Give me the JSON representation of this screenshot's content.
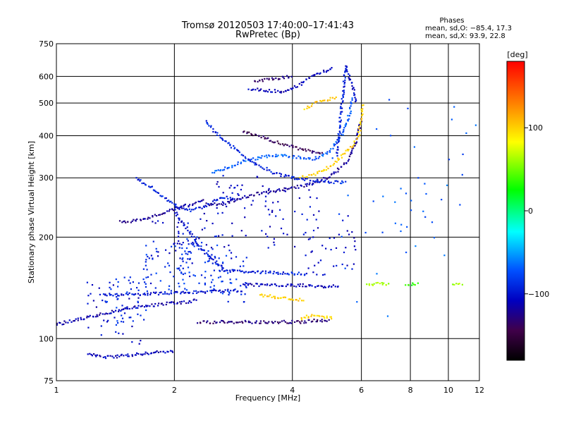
{
  "chart_data": {
    "type": "scatter",
    "title": "Tromsø 20120503 17:40:00–17:41:43",
    "subtitle": "RwPretec (Bp)",
    "xlabel": "Frequency [MHz]",
    "ylabel": "Stationary phase Virtual Height [km]",
    "xscale": "log",
    "yscale": "log",
    "xlim": [
      1,
      12
    ],
    "ylim": [
      75,
      750
    ],
    "xticks": [
      1,
      2,
      4,
      6,
      8,
      10,
      12
    ],
    "xtick_labels": [
      "1",
      "2",
      "4",
      "6",
      "8",
      "10",
      "12"
    ],
    "yticks": [
      75,
      100,
      200,
      300,
      400,
      500,
      600,
      750
    ],
    "ytick_labels": [
      "75",
      "100",
      "200",
      "300",
      "400",
      "500",
      "600",
      "750"
    ],
    "grid": true,
    "phase_stats": {
      "heading": "Phases",
      "line_o": "mean, sd,O: −85.4, 17.3",
      "line_x": "mean, sd,X:  93.9, 22.8"
    },
    "colorbar": {
      "label": "[deg]",
      "range": [
        -180,
        180
      ],
      "ticks": [
        100,
        0,
        -100
      ],
      "tick_labels": [
        "100",
        "0",
        "−100"
      ],
      "colors": [
        "#ff0000",
        "#ff8000",
        "#ffff00",
        "#00ff00",
        "#00ffff",
        "#0050ff",
        "#0000c0",
        "#40004a",
        "#000000"
      ]
    },
    "traces": [
      {
        "kind": "line",
        "x": [
          1.0,
          1.1,
          1.3,
          1.5,
          1.7,
          1.9,
          2.1,
          2.3
        ],
        "y": [
          110,
          113,
          118,
          123,
          125,
          127,
          128,
          130
        ],
        "phase": -115
      },
      {
        "kind": "line",
        "x": [
          2.3,
          2.6,
          3.0,
          3.4,
          3.8,
          4.2,
          4.5,
          5.0
        ],
        "y": [
          112,
          112,
          112,
          112,
          112,
          112,
          113,
          113
        ],
        "phase": -130
      },
      {
        "kind": "line",
        "x": [
          4.2,
          4.5,
          4.8,
          5.1
        ],
        "y": [
          115,
          117,
          116,
          115
        ],
        "phase": 100
      },
      {
        "kind": "line",
        "x": [
          1.2,
          1.35,
          1.5,
          1.65,
          1.8,
          2.0
        ],
        "y": [
          90,
          88,
          89,
          90,
          91,
          92
        ],
        "phase": -110
      },
      {
        "kind": "line",
        "x": [
          1.3,
          1.5,
          1.8,
          2.1,
          2.5,
          3.0
        ],
        "y": [
          135,
          135,
          136,
          137,
          138,
          139
        ],
        "phase": -100
      },
      {
        "kind": "line",
        "x": [
          3.0,
          3.4,
          3.8,
          4.2,
          4.8,
          5.3
        ],
        "y": [
          145,
          144,
          144,
          144,
          143,
          143
        ],
        "phase": -110
      },
      {
        "kind": "line",
        "x": [
          3.3,
          3.6,
          3.9,
          4.3
        ],
        "y": [
          135,
          133,
          132,
          130
        ],
        "phase": 100
      },
      {
        "kind": "line",
        "x": [
          2.6,
          3.0,
          3.5,
          4.0,
          4.4
        ],
        "y": [
          160,
          158,
          157,
          156,
          155
        ],
        "phase": -95
      },
      {
        "kind": "line",
        "x": [
          1.45,
          1.6,
          1.8,
          2.0,
          2.2,
          2.4
        ],
        "y": [
          222,
          224,
          232,
          242,
          250,
          258
        ],
        "phase": -120
      },
      {
        "kind": "line",
        "x": [
          1.6,
          1.75,
          1.9,
          2.05,
          2.2,
          2.35,
          2.5,
          2.7,
          2.9
        ],
        "y": [
          300,
          280,
          260,
          245,
          240,
          245,
          255,
          262,
          258
        ],
        "phase": -95
      },
      {
        "kind": "line",
        "x": [
          2.4,
          2.6,
          2.8,
          3.0,
          3.3,
          3.6,
          4.0,
          4.3,
          4.6,
          4.9,
          5.2,
          5.5,
          5.7,
          5.85,
          6.0
        ],
        "y": [
          250,
          250,
          255,
          262,
          270,
          275,
          280,
          285,
          292,
          300,
          315,
          335,
          360,
          390,
          450
        ],
        "phase": -120
      },
      {
        "kind": "line",
        "x": [
          4.2,
          4.5,
          4.8,
          5.1,
          5.4,
          5.7,
          5.9,
          6.0,
          6.05
        ],
        "y": [
          300,
          305,
          315,
          330,
          350,
          375,
          400,
          450,
          500
        ],
        "phase": 100
      },
      {
        "kind": "line",
        "x": [
          2.5,
          2.7,
          3.0,
          3.3,
          3.7,
          4.1,
          4.5,
          4.9,
          5.2,
          5.45,
          5.6,
          5.7
        ],
        "y": [
          310,
          320,
          335,
          345,
          350,
          345,
          340,
          355,
          380,
          420,
          470,
          520
        ],
        "phase": -70
      },
      {
        "kind": "line",
        "x": [
          2.4,
          2.6,
          2.9,
          3.2,
          3.6,
          4.0,
          4.5,
          5.0,
          5.5
        ],
        "y": [
          440,
          400,
          360,
          330,
          310,
          300,
          295,
          292,
          290
        ],
        "phase": -95
      },
      {
        "kind": "line",
        "x": [
          3.0,
          3.3,
          3.6,
          4.0,
          4.4,
          4.8
        ],
        "y": [
          410,
          400,
          385,
          370,
          360,
          355
        ],
        "phase": -140
      },
      {
        "kind": "line",
        "x": [
          3.1,
          3.4,
          3.8,
          4.1,
          4.3,
          4.5,
          4.7,
          4.9,
          5.1
        ],
        "y": [
          550,
          545,
          540,
          560,
          580,
          600,
          615,
          625,
          640
        ],
        "phase": -110
      },
      {
        "kind": "line",
        "x": [
          3.2,
          3.6,
          4.0
        ],
        "y": [
          580,
          590,
          600
        ],
        "phase": -130
      },
      {
        "kind": "line",
        "x": [
          5.2,
          5.3,
          5.4,
          5.45,
          5.5
        ],
        "y": [
          350,
          450,
          550,
          620,
          650
        ],
        "phase": -95
      },
      {
        "kind": "line",
        "x": [
          5.5,
          5.6,
          5.7,
          5.8
        ],
        "y": [
          640,
          600,
          560,
          500
        ],
        "phase": -105
      },
      {
        "kind": "line",
        "x": [
          4.3,
          4.6,
          4.9,
          5.2
        ],
        "y": [
          480,
          500,
          510,
          520
        ],
        "phase": 100
      },
      {
        "kind": "line",
        "x": [
          2.0,
          2.1,
          2.2,
          2.3,
          2.4,
          2.5,
          2.6,
          2.7
        ],
        "y": [
          240,
          220,
          205,
          190,
          180,
          172,
          166,
          162
        ],
        "phase": -100
      },
      {
        "kind": "line",
        "x": [
          6.2,
          6.5,
          6.8,
          7.1
        ],
        "y": [
          145,
          145,
          146,
          145
        ],
        "phase": 60
      },
      {
        "kind": "line",
        "x": [
          7.8,
          8.1,
          8.4
        ],
        "y": [
          145,
          145,
          145
        ],
        "phase": 30
      },
      {
        "kind": "line",
        "x": [
          10.3,
          10.6,
          10.9
        ],
        "y": [
          145,
          145,
          145
        ],
        "phase": 60
      },
      {
        "kind": "scatter",
        "x": [
          1.4,
          2.0,
          2.4,
          3.0,
          4.0,
          5.0
        ],
        "y": [
          120,
          180,
          200,
          250,
          230,
          190
        ],
        "phase": -105,
        "count": 220,
        "spread": [
          0.16,
          0.22
        ]
      },
      {
        "kind": "scatter",
        "x": [
          1.5,
          1.9,
          2.3,
          2.7
        ],
        "y": [
          130,
          160,
          170,
          150
        ],
        "phase": -85,
        "count": 160,
        "spread": [
          0.13,
          0.17
        ]
      },
      {
        "kind": "scatter",
        "x": [
          6.5,
          8.2,
          10.0,
          11.0
        ],
        "y": [
          200,
          300,
          400,
          250
        ],
        "phase": -70,
        "count": 60,
        "spread": [
          0.25,
          0.6
        ]
      }
    ]
  }
}
